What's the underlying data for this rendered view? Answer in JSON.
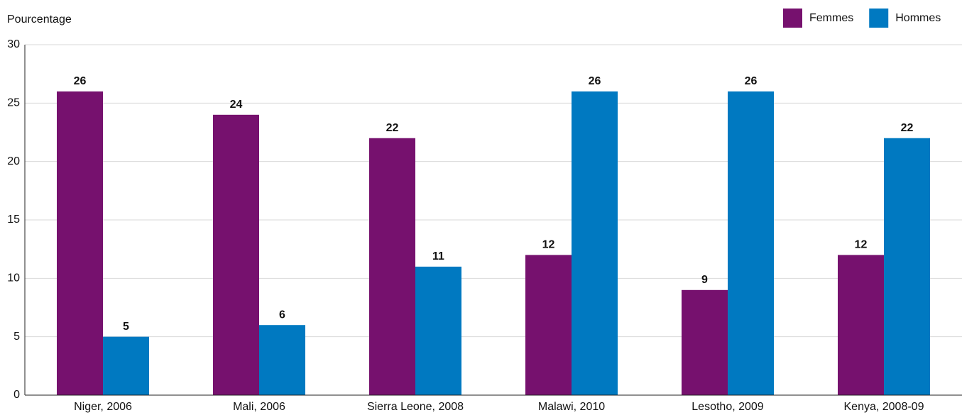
{
  "chart_data": {
    "type": "bar",
    "y_label": "Pourcentage",
    "categories": [
      "Niger, 2006",
      "Mali, 2006",
      "Sierra Leone, 2008",
      "Malawi, 2010",
      "Lesotho, 2009",
      "Kenya, 2008-09"
    ],
    "series": [
      {
        "name": "Femmes",
        "color": "#76116e",
        "values": [
          26,
          24,
          22,
          12,
          9,
          12
        ]
      },
      {
        "name": "Hommes",
        "color": "#0079c1",
        "values": [
          5,
          6,
          11,
          26,
          26,
          22
        ]
      }
    ],
    "ylim": [
      0,
      30
    ],
    "yticks": [
      0,
      5,
      10,
      15,
      20,
      25,
      30
    ],
    "grid": true,
    "legend": "top-right"
  }
}
